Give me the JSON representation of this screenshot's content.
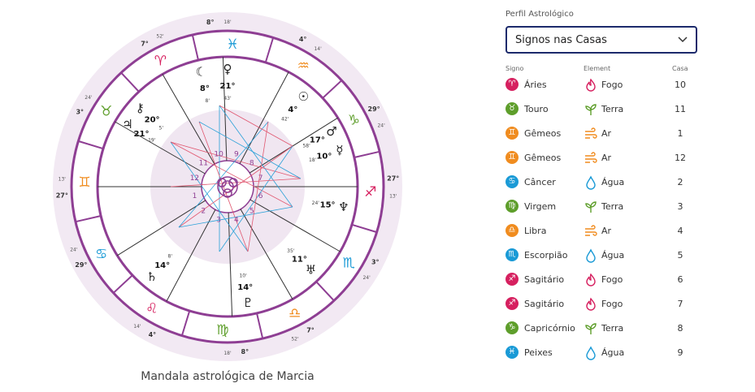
{
  "caption": "Mandala astrológica de Marcia",
  "panel": {
    "label": "Perfil Astrológico",
    "select_value": "Signos nas Casas",
    "headers": {
      "signo": "Signo",
      "element": "Element",
      "casa": "Casa"
    }
  },
  "colors": {
    "fogo": "#d6205f",
    "terra": "#5e9e2b",
    "ar": "#f08c1f",
    "agua": "#1a9ad6",
    "ring": "#8e3e93",
    "ring_bg": "#f2e9f3",
    "inner_bg": "#f0e6f1",
    "dropdown_border": "#1c2a6b"
  },
  "rows": [
    {
      "sign": "Áries",
      "glyph": "♈",
      "element": "Fogo",
      "el_key": "fogo",
      "casa": "10"
    },
    {
      "sign": "Touro",
      "glyph": "♉",
      "element": "Terra",
      "el_key": "terra",
      "casa": "11"
    },
    {
      "sign": "Gêmeos",
      "glyph": "♊",
      "element": "Ar",
      "el_key": "ar",
      "casa": "1"
    },
    {
      "sign": "Gêmeos",
      "glyph": "♊",
      "element": "Ar",
      "el_key": "ar",
      "casa": "12"
    },
    {
      "sign": "Câncer",
      "glyph": "♋",
      "element": "Água",
      "el_key": "agua",
      "casa": "2"
    },
    {
      "sign": "Virgem",
      "glyph": "♍",
      "element": "Terra",
      "el_key": "terra",
      "casa": "3"
    },
    {
      "sign": "Libra",
      "glyph": "♎",
      "element": "Ar",
      "el_key": "ar",
      "casa": "4"
    },
    {
      "sign": "Escorpião",
      "glyph": "♏",
      "element": "Água",
      "el_key": "agua",
      "casa": "5"
    },
    {
      "sign": "Sagitário",
      "glyph": "♐",
      "element": "Fogo",
      "el_key": "fogo",
      "casa": "6"
    },
    {
      "sign": "Sagitário",
      "glyph": "♐",
      "element": "Fogo",
      "el_key": "fogo",
      "casa": "7"
    },
    {
      "sign": "Capricórnio",
      "glyph": "♑",
      "element": "Terra",
      "el_key": "terra",
      "casa": "8"
    },
    {
      "sign": "Peixes",
      "glyph": "♓",
      "element": "Água",
      "el_key": "agua",
      "casa": "9"
    }
  ],
  "wheel": {
    "zodiac": [
      {
        "glyph": "♈",
        "el_key": "fogo"
      },
      {
        "glyph": "♓",
        "el_key": "agua"
      },
      {
        "glyph": "♒",
        "el_key": "ar"
      },
      {
        "glyph": "☉",
        "el_key": "none"
      },
      {
        "glyph": "♑",
        "el_key": "terra"
      },
      {
        "glyph": "♐",
        "el_key": "fogo"
      },
      {
        "glyph": "♏",
        "el_key": "agua"
      },
      {
        "glyph": "♎",
        "el_key": "ar"
      },
      {
        "glyph": "♍",
        "el_key": "terra"
      },
      {
        "glyph": "♌",
        "el_key": "fogo"
      },
      {
        "glyph": "♋",
        "el_key": "agua"
      },
      {
        "glyph": "♊",
        "el_key": "ar"
      },
      {
        "glyph": "♉",
        "el_key": "terra"
      }
    ],
    "cusp_labels": [
      "8°",
      "4°",
      "29°",
      "27°",
      "3°",
      "7°",
      "8°",
      "4°",
      "29°",
      "27°",
      "3°",
      "7°"
    ],
    "small_labels": [
      "18'",
      "14'",
      "24'",
      "13'",
      "24'",
      "52'",
      "18'",
      "14'",
      "24'",
      "13'",
      "24'",
      "52'"
    ],
    "house_numbers": [
      "1",
      "2",
      "3",
      "4",
      "5",
      "6",
      "7",
      "8",
      "9",
      "10",
      "11",
      "12"
    ],
    "planets": [
      {
        "glyph": "☾",
        "degree": "8°",
        "minute": "8'"
      },
      {
        "glyph": "♀",
        "degree": "21°",
        "minute": "43'"
      },
      {
        "glyph": "☉",
        "degree": "4°",
        "minute": "42'"
      },
      {
        "glyph": "♂",
        "degree": "17°",
        "minute": "58'"
      },
      {
        "glyph": "☿",
        "degree": "10°",
        "minute": "18'"
      },
      {
        "glyph": "♆",
        "degree": "15°",
        "minute": "24'"
      },
      {
        "glyph": "♅",
        "degree": "11°",
        "minute": "35'"
      },
      {
        "glyph": "♇",
        "degree": "14°",
        "minute": "10'"
      },
      {
        "glyph": "♄",
        "degree": "14°",
        "minute": "8'"
      },
      {
        "glyph": "♃",
        "degree": "21°",
        "minute": "19'"
      },
      {
        "glyph": "⚷",
        "degree": "20°",
        "minute": "5'"
      }
    ]
  }
}
